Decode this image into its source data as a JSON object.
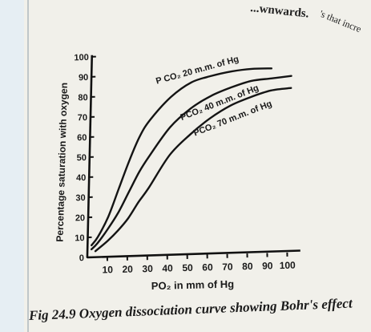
{
  "header_fragments": {
    "left": "...wnwards.",
    "right": "'s that incre"
  },
  "caption": "Fig 24.9 Oxygen dissociation curve showing Bohr's effect",
  "chart_data": {
    "type": "line",
    "xlabel": "PO₂ in mm of Hg",
    "ylabel": "Percentage saturation with oxygen",
    "xlim": [
      0,
      105
    ],
    "ylim": [
      0,
      100
    ],
    "x_ticks": [
      10,
      20,
      30,
      40,
      50,
      60,
      70,
      80,
      90,
      100
    ],
    "x_tick_labels": [
      "10",
      "20",
      "30",
      "40",
      "50",
      "60",
      "70",
      "80",
      "90",
      "100"
    ],
    "y_ticks": [
      0,
      10,
      20,
      30,
      40,
      50,
      60,
      70,
      80,
      90,
      100
    ],
    "y_tick_labels": [
      "0",
      "10",
      "20",
      "30",
      "40",
      "50",
      "60",
      "70",
      "80",
      "90",
      "100"
    ],
    "grid": false,
    "series": [
      {
        "name": "P CO₂ 20 m.m. of Hg",
        "x": [
          2,
          5,
          10,
          15,
          20,
          25,
          30,
          40,
          50,
          60,
          70,
          80,
          90
        ],
        "y": [
          6,
          10,
          20,
          34,
          48,
          60,
          68,
          79,
          86,
          89,
          91,
          92,
          92
        ]
      },
      {
        "name": "PCO₂ 40 m.m. of Hg",
        "x": [
          2,
          5,
          10,
          15,
          20,
          25,
          30,
          40,
          50,
          60,
          70,
          80,
          90,
          100
        ],
        "y": [
          4,
          7,
          14,
          22,
          32,
          42,
          50,
          64,
          73,
          79,
          83,
          86,
          87,
          88
        ]
      },
      {
        "name": "PCO₂ 70 m.m. of Hg",
        "x": [
          4,
          10,
          15,
          20,
          25,
          30,
          40,
          50,
          60,
          70,
          80,
          90,
          100
        ],
        "y": [
          3,
          8,
          13,
          19,
          27,
          34,
          50,
          60,
          68,
          74,
          78,
          81,
          82
        ]
      }
    ]
  }
}
